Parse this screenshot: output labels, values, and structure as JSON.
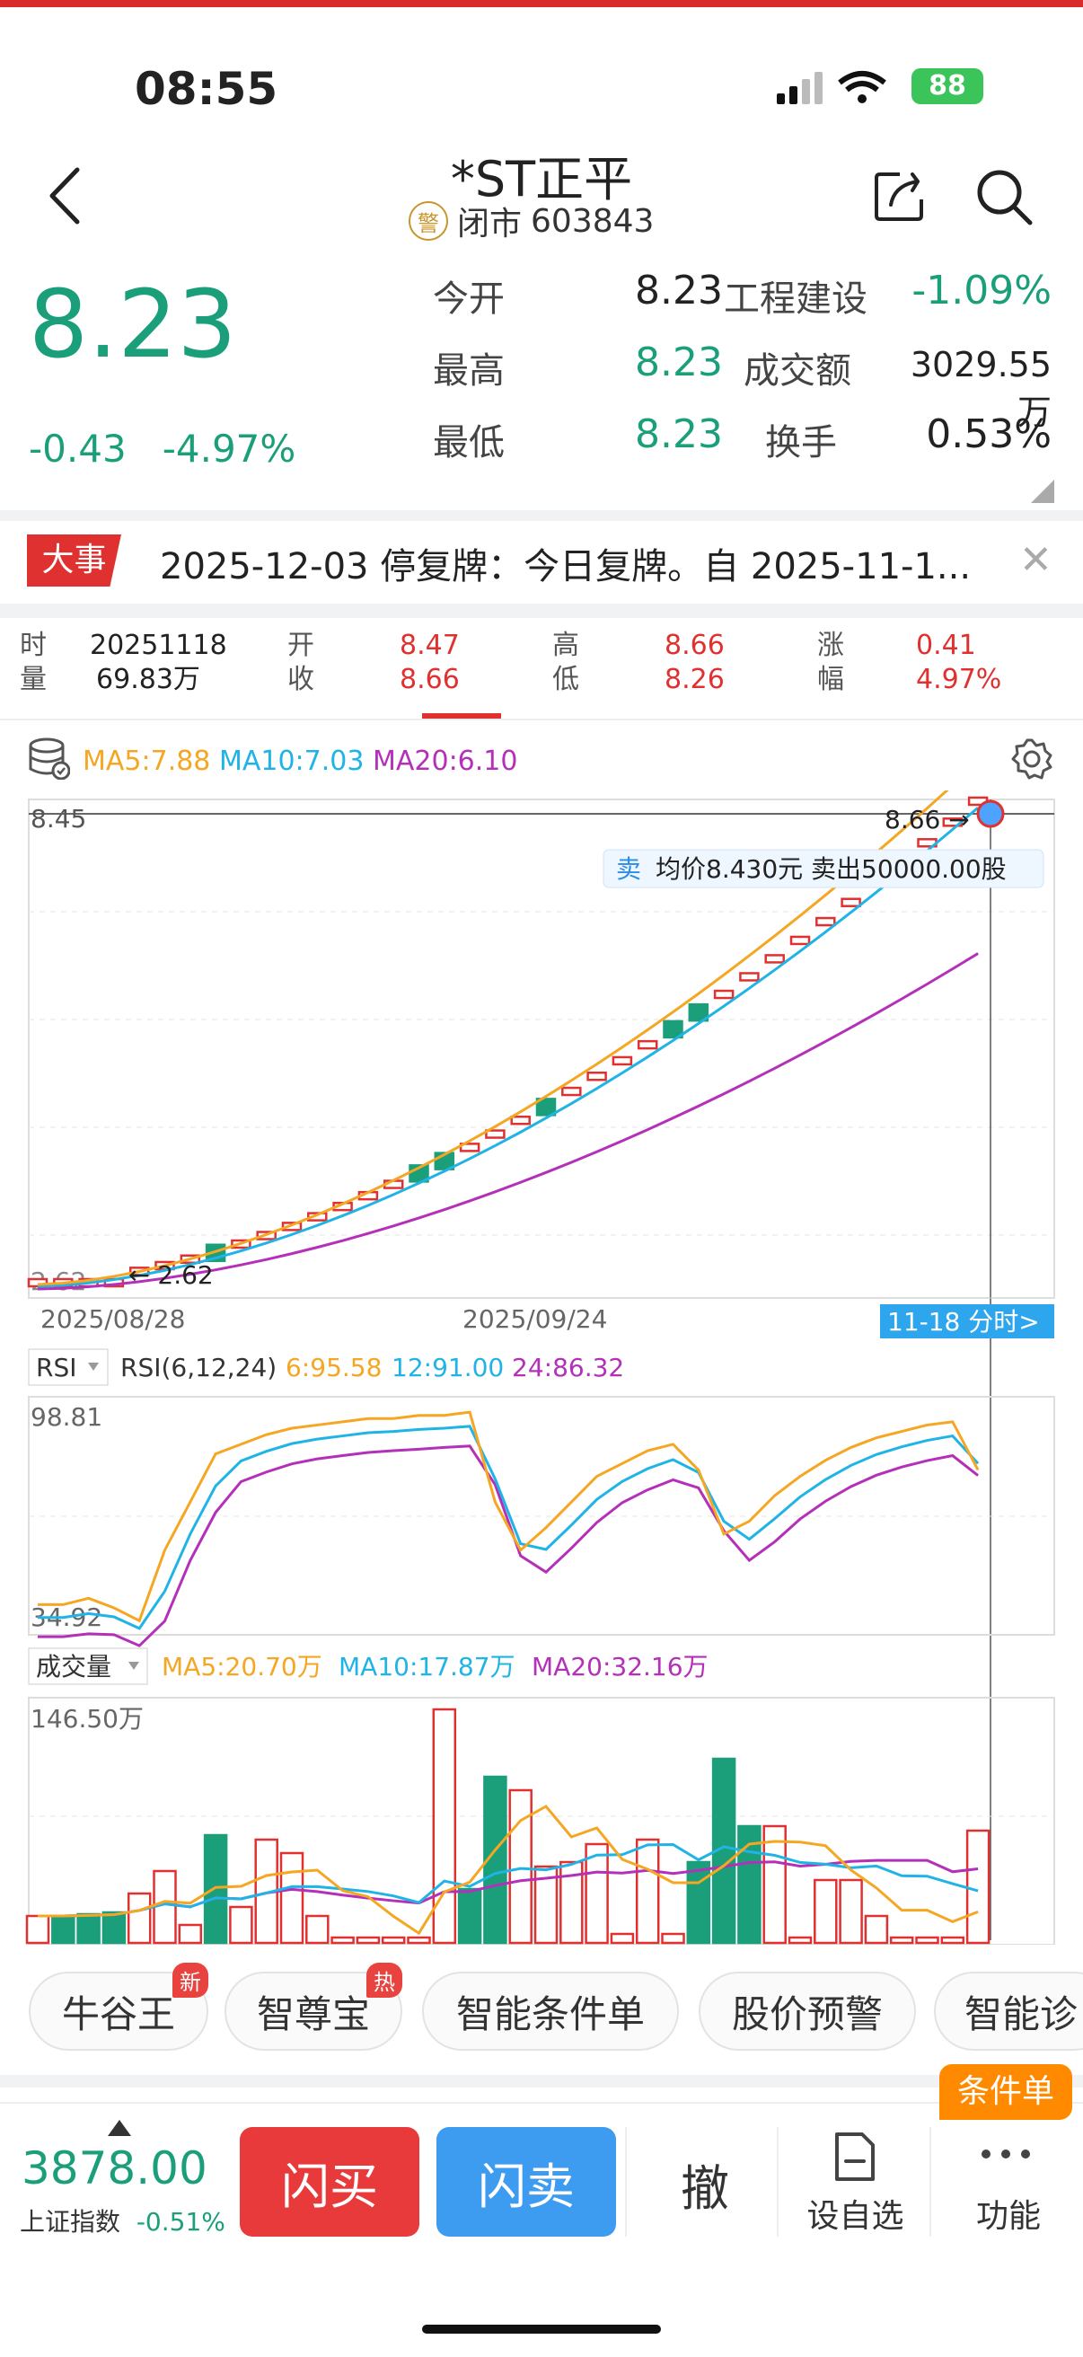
{
  "status": {
    "time": "08:55",
    "battery": "88"
  },
  "header": {
    "title": "*ST正平",
    "badge": "警",
    "market_status": "闭市",
    "code": "603843"
  },
  "quote": {
    "price": "8.23",
    "change": "-0.43",
    "change_pct": "-4.97%",
    "open_label": "今开",
    "open": "8.23",
    "high_label": "最高",
    "high": "8.23",
    "low_label": "最低",
    "low": "8.23",
    "sector": "工程建设",
    "sector_pct": "-1.09%",
    "amount_label": "成交额",
    "amount": "3029.55万",
    "turnover_label": "换手",
    "turnover": "0.53%"
  },
  "event": {
    "tag": "大事",
    "text": "2025-12-03 停复牌：今日复牌。自 2025-11-1..."
  },
  "info_row": {
    "time_label": "时",
    "vol_label": "量",
    "date": "20251118",
    "volume": "69.83万",
    "open_label": "开",
    "close_label": "收",
    "open": "8.47",
    "close": "8.66",
    "high_label": "高",
    "low_label": "低",
    "high": "8.66",
    "low": "8.26",
    "chg_label": "涨",
    "pct_label": "幅",
    "chg": "0.41",
    "pct": "4.97%"
  },
  "kline": {
    "ma5": "MA5:7.88",
    "ma10": "MA10:7.03",
    "ma20": "MA20:6.10",
    "ymax_label": "8.45",
    "ymin_label": "2.62",
    "high_marker": "8.66",
    "low_marker": "2.62",
    "date_left": "2025/08/28",
    "date_mid": "2025/09/24",
    "intraday_link": "11-18 分时>",
    "sell_tag": "卖",
    "sell_text": "均价8.430元 卖出50000.00股",
    "colors": {
      "up": "#e03131",
      "down": "#1a9f7a",
      "ma5": "#f5a623",
      "ma10": "#20b4e6",
      "ma20": "#b430b8"
    }
  },
  "rsi": {
    "selector": "RSI",
    "params": "RSI(6,12,24)",
    "v6": "6:95.58",
    "v12": "12:91.00",
    "v24": "24:86.32",
    "ymax_label": "98.81",
    "ymin_label": "34.92"
  },
  "volume": {
    "selector": "成交量",
    "ma5": "MA5:20.70万",
    "ma10": "MA10:17.87万",
    "ma20": "MA20:32.16万",
    "ymax_label": "146.50万"
  },
  "features": [
    {
      "label": "牛谷王",
      "tag": "新"
    },
    {
      "label": "智尊宝",
      "tag": "热"
    },
    {
      "label": "智能条件单",
      "tag": ""
    },
    {
      "label": "股价预警",
      "tag": ""
    },
    {
      "label": "智能诊",
      "tag": ""
    }
  ],
  "condition_badge": "条件单",
  "bottom": {
    "index_value": "3878.00",
    "index_name": "上证指数",
    "index_pct": "-0.51%",
    "buy": "闪买",
    "sell": "闪卖",
    "cancel": "撤",
    "add": "设自选",
    "more": "功能"
  }
}
